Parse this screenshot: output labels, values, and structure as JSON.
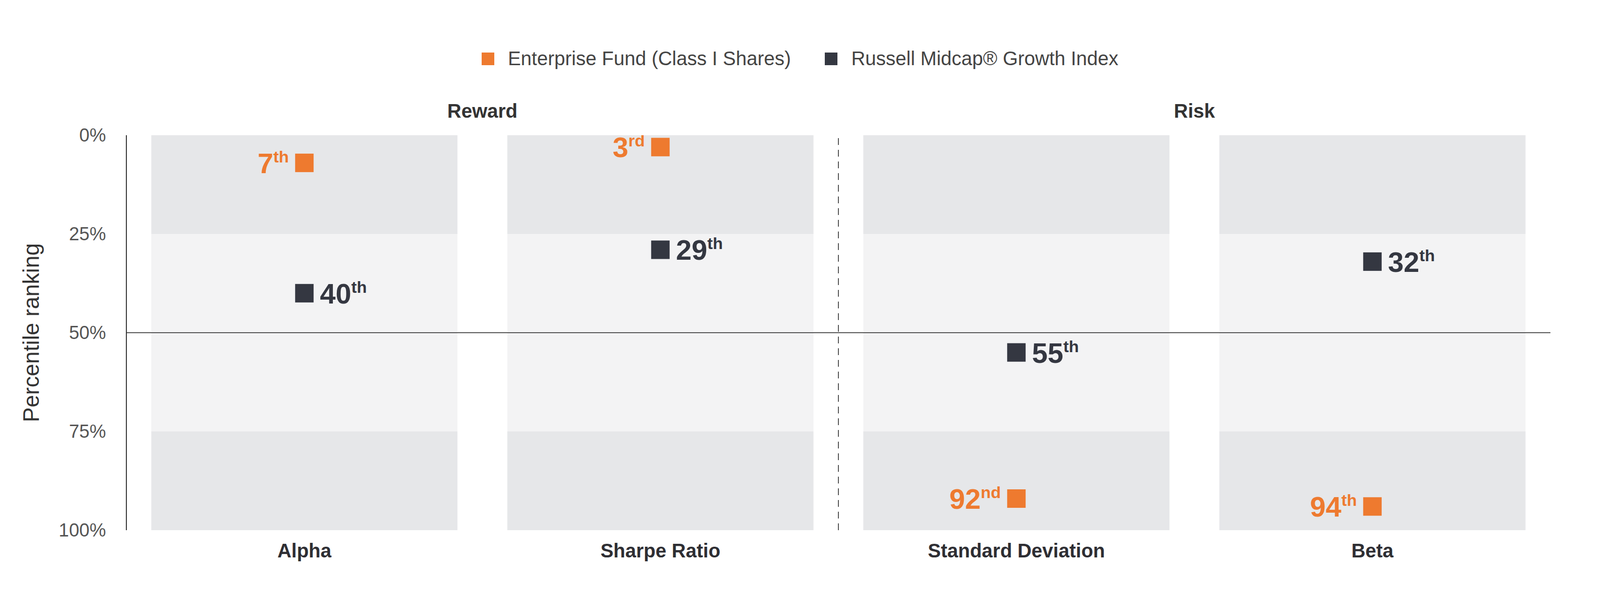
{
  "chart_data": {
    "type": "scatter",
    "categories": [
      "Alpha",
      "Sharpe Ratio",
      "Standard Deviation",
      "Beta"
    ],
    "groups": [
      {
        "label": "Reward",
        "categories": [
          "Alpha",
          "Sharpe Ratio"
        ]
      },
      {
        "label": "Risk",
        "categories": [
          "Standard Deviation",
          "Beta"
        ]
      }
    ],
    "y_label": "Percentile ranking",
    "ylim": [
      0,
      100
    ],
    "yticks": [
      {
        "value": 0,
        "label": "0%"
      },
      {
        "value": 25,
        "label": "25%"
      },
      {
        "value": 50,
        "label": "50%"
      },
      {
        "value": 75,
        "label": "75%"
      },
      {
        "value": 100,
        "label": "100%"
      }
    ],
    "series": [
      {
        "name": "Enterprise Fund (Class I Shares)",
        "color": "#EE7A2F",
        "marker": "square",
        "values": [
          7,
          3,
          92,
          94
        ],
        "value_labels": [
          "7th",
          "3rd",
          "92nd",
          "94th"
        ]
      },
      {
        "name": "Russell Midcap® Growth Index",
        "color": "#343741",
        "marker": "square",
        "values": [
          40,
          29,
          55,
          32
        ],
        "value_labels": [
          "40th",
          "29th",
          "55th",
          "32th"
        ]
      }
    ],
    "data_labels": true,
    "legend": "top"
  }
}
